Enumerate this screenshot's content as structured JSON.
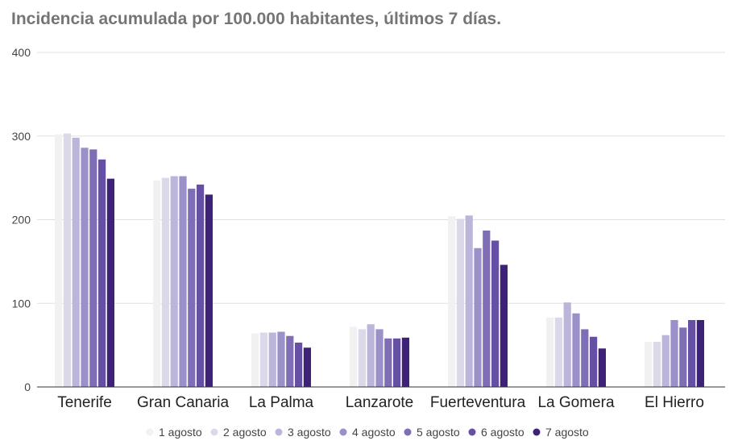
{
  "chart_data": {
    "type": "bar",
    "title": "Incidencia acumulada por 100.000 habitantes, últimos 7 días.",
    "xlabel": "",
    "ylabel": "",
    "ylim": [
      0,
      400
    ],
    "yticks": [
      0,
      100,
      200,
      300,
      400
    ],
    "grid": true,
    "legend_position": "bottom",
    "categories": [
      "Tenerife",
      "Gran Canaria",
      "La Palma",
      "Lanzarote",
      "Fuerteventura",
      "La Gomera",
      "El Hierro"
    ],
    "series": [
      {
        "name": "1 agosto",
        "color": "#f1f1f1",
        "values": [
          302,
          247,
          64,
          72,
          204,
          83,
          54
        ]
      },
      {
        "name": "2 agosto",
        "color": "#dcd8ea",
        "values": [
          303,
          250,
          65,
          69,
          201,
          83,
          54
        ]
      },
      {
        "name": "3 agosto",
        "color": "#bcb5da",
        "values": [
          298,
          252,
          65,
          75,
          205,
          101,
          62
        ]
      },
      {
        "name": "4 agosto",
        "color": "#9c90c8",
        "values": [
          286,
          252,
          66,
          69,
          166,
          88,
          80
        ]
      },
      {
        "name": "5 agosto",
        "color": "#7f6db5",
        "values": [
          284,
          237,
          61,
          58,
          187,
          69,
          71
        ]
      },
      {
        "name": "6 agosto",
        "color": "#6650a3",
        "values": [
          272,
          242,
          53,
          58,
          175,
          60,
          80
        ]
      },
      {
        "name": "7 agosto",
        "color": "#3e2278",
        "values": [
          249,
          230,
          47,
          59,
          146,
          46,
          80
        ]
      }
    ]
  }
}
